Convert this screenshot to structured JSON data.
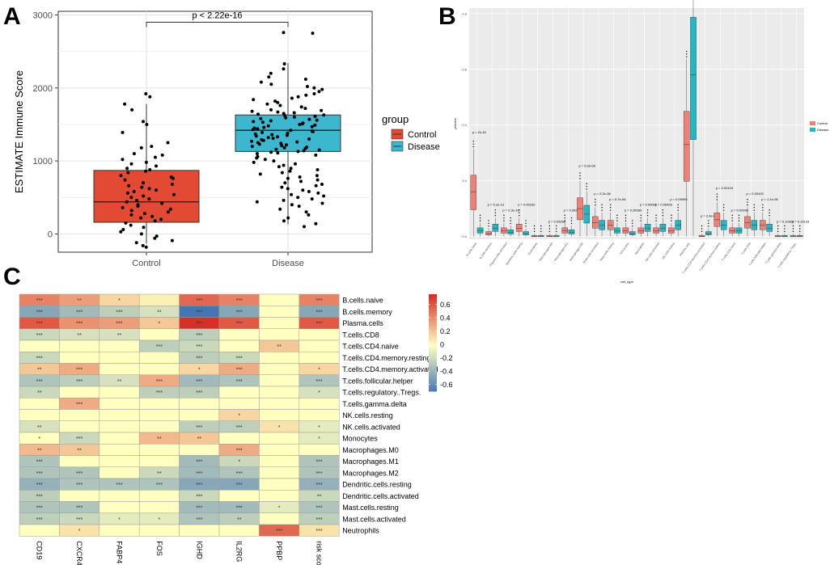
{
  "colors": {
    "control": "#E34A33",
    "disease": "#3DB7D0",
    "control_b": "#F07F75",
    "disease_b": "#1FB8C3",
    "panel_bg": "#EBEBEB",
    "heat_low": "#4575B4",
    "heat_mid": "#FFFFBF",
    "heat_high": "#D73027"
  },
  "panel_labels": [
    "A",
    "B",
    "C"
  ],
  "chart_data": [
    {
      "panel": "A",
      "type": "box",
      "ylabel": "ESTIMATE Immune Score",
      "xlabel": "",
      "ylim": [
        -250,
        3050
      ],
      "yticks": [
        0,
        1000,
        2000,
        3000
      ],
      "categories": [
        "Control",
        "Disease"
      ],
      "boxes": [
        {
          "name": "Control",
          "q1": 160,
          "median": 440,
          "q3": 870,
          "whisker_low": -130,
          "whisker_high": 1780
        },
        {
          "name": "Disease",
          "q1": 1130,
          "median": 1420,
          "q3": 1630,
          "whisker_low": 130,
          "whisker_high": 2340
        }
      ],
      "annotation": "p < 2.22e-16",
      "legend_title": "group",
      "legend": [
        "Control",
        "Disease"
      ],
      "points": {
        "Control": [
          1920,
          1880,
          1780,
          1700,
          1540,
          1500,
          1390,
          1250,
          1200,
          1180,
          1100,
          1080,
          1050,
          1020,
          980,
          960,
          930,
          900,
          880,
          860,
          840,
          800,
          780,
          760,
          740,
          700,
          680,
          660,
          640,
          620,
          600,
          580,
          560,
          540,
          520,
          500,
          480,
          460,
          440,
          420,
          400,
          380,
          360,
          340,
          320,
          300,
          280,
          260,
          240,
          220,
          200,
          180,
          150,
          120,
          90,
          60,
          30,
          0,
          -30,
          -60,
          -90,
          -120,
          -160,
          -180
        ],
        "Disease": [
          2760,
          2750,
          2330,
          2260,
          2200,
          2150,
          2120,
          2080,
          2050,
          2020,
          2000,
          1980,
          1950,
          1920,
          1900,
          1880,
          1860,
          1840,
          1820,
          1800,
          1780,
          1760,
          1740,
          1720,
          1700,
          1690,
          1680,
          1670,
          1660,
          1650,
          1640,
          1630,
          1620,
          1610,
          1600,
          1590,
          1580,
          1570,
          1560,
          1550,
          1540,
          1530,
          1520,
          1510,
          1500,
          1490,
          1480,
          1470,
          1460,
          1450,
          1440,
          1430,
          1420,
          1410,
          1400,
          1390,
          1380,
          1370,
          1360,
          1350,
          1340,
          1330,
          1320,
          1310,
          1300,
          1290,
          1280,
          1270,
          1260,
          1250,
          1240,
          1230,
          1220,
          1210,
          1200,
          1190,
          1180,
          1170,
          1160,
          1150,
          1140,
          1130,
          1120,
          1110,
          1100,
          1080,
          1060,
          1040,
          1020,
          1000,
          980,
          960,
          940,
          920,
          900,
          880,
          860,
          840,
          820,
          800,
          780,
          760,
          740,
          720,
          700,
          680,
          660,
          640,
          620,
          600,
          580,
          560,
          540,
          520,
          500,
          480,
          460,
          440,
          420,
          400,
          380,
          340,
          300,
          260,
          220,
          180,
          140,
          100
        ]
      }
    },
    {
      "panel": "B",
      "type": "box",
      "xlabel": "cell_type",
      "ylabel": "percent",
      "ylim": [
        -0.01,
        0.82
      ],
      "yticks": [
        0.0,
        0.2,
        0.4,
        0.6,
        0.8
      ],
      "legend": [
        "Control",
        "Disease"
      ],
      "categories": [
        "B.cells.naive",
        "B.cells.memory",
        "Plasma.cells.activated",
        "Dendritic.cells.resting",
        "Eosinophils",
        "Macrophages.M0",
        "Macrophages.M1",
        "Macrophages.M2",
        "Mast.cells.activated",
        "Mast.cells.resting",
        "Monocytes",
        "Neutrophils",
        "NK.cells.activated",
        "NK.cells.resting",
        "Plasma.cells",
        "T.cells.CD4.memory.activated",
        "T.cells.CD4.memory.resting",
        "T.cells.CD4.naive",
        "T.cells.CD8",
        "T.cells.follicular.helper",
        "T.cells.gamma.delta",
        "T.cells.regulatory..Tregs."
      ],
      "pvalues": [
        "p = 2e-16",
        "p = 5.1e-13",
        "p = 2.3e-16",
        "p = 0.00230",
        "",
        "p = 0.05266",
        "p = 0.00216",
        "p = 5.0e-06",
        "p = 2.2e-08",
        "p = 5.7e-06",
        "p = 0.26083",
        "p = 0.00001",
        "p = 0.00426",
        "p = 0.09995",
        "p < 2e-16",
        "p = 2.4e-07",
        "p = 0.00124",
        "p = 0.02990",
        "p = 0.00103",
        "p = 1.1e-06",
        "p = 0.10329",
        "p = 0.13193"
      ],
      "control_medians": [
        0.16,
        0.01,
        0.02,
        0.03,
        0.0,
        0.0,
        0.02,
        0.1,
        0.05,
        0.04,
        0.02,
        0.02,
        0.02,
        0.02,
        0.33,
        0.0,
        0.06,
        0.02,
        0.05,
        0.04,
        0.0,
        0.0
      ],
      "disease_medians": [
        0.02,
        0.03,
        0.015,
        0.01,
        0.0,
        0.0,
        0.015,
        0.08,
        0.04,
        0.02,
        0.01,
        0.03,
        0.03,
        0.04,
        0.58,
        0.01,
        0.04,
        0.02,
        0.04,
        0.03,
        0.0,
        0.0
      ]
    },
    {
      "panel": "C",
      "type": "heatmap",
      "columns": [
        "CD19",
        "CXCR4",
        "FABP4",
        "FOS",
        "IGHD",
        "IL2RG",
        "PPBP",
        "risk score"
      ],
      "rows": [
        "B.cells.naive",
        "B.cells.memory",
        "Plasma.cells",
        "T.cells.CD8",
        "T.cells.CD4.naive",
        "T.cells.CD4.memory.resting",
        "T.cells.CD4.memory.activated",
        "T.cells.follicular.helper",
        "T.cells.regulatory..Tregs.",
        "T.cells.gamma.delta",
        "NK.cells.resting",
        "NK.cells.activated",
        "Monocytes",
        "Macrophages.M0",
        "Macrophages.M1",
        "Macrophages.M2",
        "Dendritic.cells.resting",
        "Dendritic.cells.activated",
        "Mast.cells.resting",
        "Mast.cells.activated",
        "Neutrophils"
      ],
      "values": [
        [
          0.45,
          0.35,
          0.15,
          0.05,
          0.55,
          0.45,
          0.0,
          0.45
        ],
        [
          -0.45,
          -0.35,
          -0.25,
          -0.15,
          -0.7,
          -0.45,
          0.0,
          -0.45
        ],
        [
          0.6,
          0.4,
          0.35,
          0.2,
          0.75,
          0.6,
          0.0,
          0.6
        ],
        [
          -0.2,
          -0.15,
          -0.15,
          0.0,
          -0.25,
          0.0,
          0.0,
          0.0
        ],
        [
          0.0,
          0.0,
          0.0,
          -0.25,
          -0.2,
          0.0,
          0.2,
          0.0
        ],
        [
          -0.2,
          0.0,
          0.0,
          0.0,
          -0.25,
          -0.2,
          0.0,
          0.0
        ],
        [
          0.2,
          0.3,
          0.0,
          0.0,
          0.15,
          0.3,
          0.0,
          0.15
        ],
        [
          -0.3,
          -0.25,
          -0.15,
          0.3,
          -0.35,
          -0.3,
          0.0,
          -0.3
        ],
        [
          -0.2,
          0.0,
          0.0,
          -0.25,
          -0.25,
          0.0,
          0.0,
          -0.15
        ],
        [
          0.0,
          0.3,
          0.0,
          0.0,
          0.0,
          0.0,
          0.0,
          0.0
        ],
        [
          0.0,
          0.0,
          0.0,
          0.0,
          0.0,
          0.15,
          0.0,
          0.0
        ],
        [
          -0.15,
          0.0,
          0.0,
          0.0,
          -0.25,
          -0.25,
          0.1,
          -0.1
        ],
        [
          0.0,
          -0.2,
          0.0,
          0.25,
          0.2,
          0.0,
          0.0,
          -0.1
        ],
        [
          0.25,
          0.2,
          0.0,
          0.0,
          0.0,
          0.3,
          0.0,
          0.0
        ],
        [
          -0.3,
          0.0,
          0.0,
          0.0,
          -0.35,
          -0.2,
          0.0,
          -0.3
        ],
        [
          -0.3,
          -0.3,
          0.0,
          -0.2,
          -0.35,
          -0.3,
          0.0,
          -0.3
        ],
        [
          -0.4,
          -0.3,
          -0.3,
          -0.3,
          -0.45,
          -0.45,
          0.0,
          -0.4
        ],
        [
          -0.25,
          0.0,
          0.0,
          0.0,
          -0.2,
          0.0,
          0.0,
          -0.2
        ],
        [
          -0.3,
          -0.3,
          0.0,
          0.0,
          -0.35,
          -0.35,
          -0.1,
          -0.3
        ],
        [
          -0.25,
          -0.2,
          -0.1,
          -0.1,
          -0.3,
          -0.25,
          0.0,
          -0.25
        ],
        [
          0.0,
          0.1,
          0.0,
          0.0,
          0.0,
          0.0,
          0.55,
          0.1
        ]
      ],
      "significance": [
        [
          "***",
          "**",
          "*",
          "",
          "***",
          "***",
          "",
          "***"
        ],
        [
          "***",
          "***",
          "***",
          "**",
          "***",
          "***",
          "",
          "***"
        ],
        [
          "***",
          "***",
          "***",
          "*",
          "***",
          "***",
          "",
          "***"
        ],
        [
          "***",
          "**",
          "**",
          "",
          "***",
          "",
          "",
          ""
        ],
        [
          "",
          "",
          "",
          "***",
          "***",
          "",
          "**",
          ""
        ],
        [
          "***",
          "",
          "",
          "",
          "***",
          "***",
          "",
          ""
        ],
        [
          "**",
          "***",
          "",
          "",
          "*",
          "***",
          "",
          "*"
        ],
        [
          "***",
          "***",
          "**",
          "***",
          "***",
          "***",
          "",
          "***"
        ],
        [
          "**",
          "",
          "",
          "***",
          "***",
          "",
          "",
          "*"
        ],
        [
          "",
          "***",
          "",
          "",
          "",
          "",
          "",
          ""
        ],
        [
          "",
          "",
          "",
          "",
          "",
          "*",
          "",
          ""
        ],
        [
          "**",
          "",
          "",
          "",
          "***",
          "***",
          "*",
          "*"
        ],
        [
          "*",
          "***",
          "",
          "**",
          "**",
          "",
          "",
          "*"
        ],
        [
          "**",
          "**",
          "",
          "",
          "",
          "***",
          "",
          ""
        ],
        [
          "***",
          "",
          "",
          "",
          "***",
          "*",
          "",
          "***"
        ],
        [
          "***",
          "***",
          "",
          "**",
          "***",
          "***",
          "",
          "***"
        ],
        [
          "***",
          "***",
          "***",
          "***",
          "***",
          "***",
          "",
          "***"
        ],
        [
          "***",
          "",
          "",
          "",
          "***",
          "",
          "",
          "**"
        ],
        [
          "***",
          "***",
          "",
          "",
          "***",
          "***",
          "*",
          "***"
        ],
        [
          "***",
          "***",
          "*",
          "*",
          "***",
          "**",
          "",
          "***"
        ],
        [
          "",
          "*",
          "",
          "",
          "",
          "",
          "***",
          "***"
        ]
      ],
      "legend_ticks": [
        0.6,
        0.4,
        0.2,
        0,
        -0.2,
        -0.4,
        -0.6
      ],
      "legend_tick_labels": [
        "0.6",
        "0.4",
        "0.2",
        "0",
        "-0.2",
        "-0.4",
        "-0.6"
      ],
      "range": [
        -0.7,
        0.75
      ]
    }
  ]
}
